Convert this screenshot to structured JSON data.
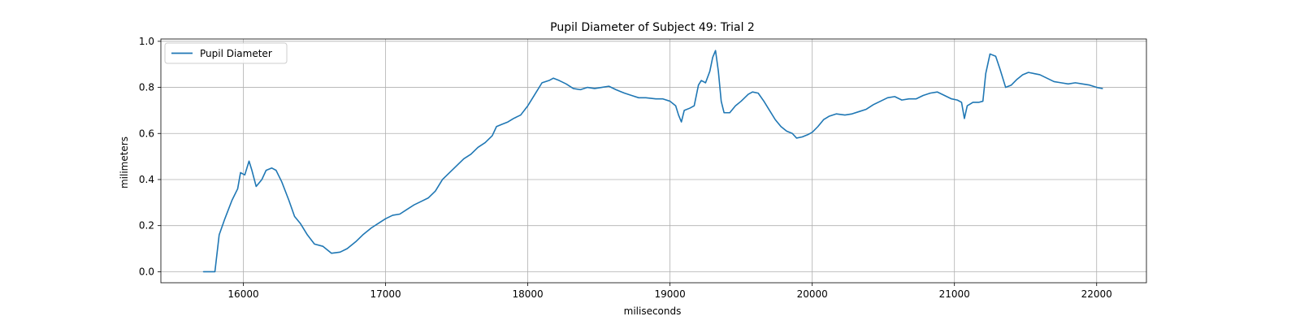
{
  "chart_data": {
    "type": "line",
    "title": "Pupil Diameter of Subject 49: Trial 2",
    "xlabel": "miliseconds",
    "ylabel": "milimeters",
    "xlim": [
      15420,
      22350
    ],
    "ylim": [
      -0.048,
      1.01
    ],
    "xticks": [
      16000,
      17000,
      18000,
      19000,
      20000,
      21000,
      22000
    ],
    "yticks": [
      0.0,
      0.2,
      0.4,
      0.6,
      0.8,
      1.0
    ],
    "xtick_labels": [
      "16000",
      "17000",
      "18000",
      "19000",
      "20000",
      "21000",
      "22000"
    ],
    "ytick_labels": [
      "0.0",
      "0.2",
      "0.4",
      "0.6",
      "0.8",
      "1.0"
    ],
    "grid": true,
    "legend_position": "upper-left",
    "series": [
      {
        "name": "Pupil Diameter",
        "color": "#1f77b4",
        "points": [
          [
            15720,
            0.0
          ],
          [
            15800,
            0.0
          ],
          [
            15830,
            0.16
          ],
          [
            15870,
            0.23
          ],
          [
            15920,
            0.31
          ],
          [
            15960,
            0.36
          ],
          [
            15980,
            0.43
          ],
          [
            16010,
            0.42
          ],
          [
            16040,
            0.48
          ],
          [
            16060,
            0.44
          ],
          [
            16090,
            0.37
          ],
          [
            16130,
            0.4
          ],
          [
            16160,
            0.44
          ],
          [
            16200,
            0.45
          ],
          [
            16230,
            0.44
          ],
          [
            16270,
            0.39
          ],
          [
            16320,
            0.31
          ],
          [
            16360,
            0.24
          ],
          [
            16400,
            0.21
          ],
          [
            16450,
            0.16
          ],
          [
            16500,
            0.12
          ],
          [
            16560,
            0.11
          ],
          [
            16620,
            0.08
          ],
          [
            16680,
            0.085
          ],
          [
            16730,
            0.1
          ],
          [
            16790,
            0.13
          ],
          [
            16840,
            0.16
          ],
          [
            16900,
            0.19
          ],
          [
            16950,
            0.21
          ],
          [
            17000,
            0.23
          ],
          [
            17050,
            0.245
          ],
          [
            17100,
            0.25
          ],
          [
            17150,
            0.27
          ],
          [
            17200,
            0.29
          ],
          [
            17250,
            0.305
          ],
          [
            17300,
            0.32
          ],
          [
            17350,
            0.35
          ],
          [
            17400,
            0.4
          ],
          [
            17450,
            0.43
          ],
          [
            17500,
            0.46
          ],
          [
            17550,
            0.49
          ],
          [
            17600,
            0.51
          ],
          [
            17650,
            0.54
          ],
          [
            17700,
            0.56
          ],
          [
            17750,
            0.59
          ],
          [
            17780,
            0.63
          ],
          [
            17820,
            0.64
          ],
          [
            17860,
            0.65
          ],
          [
            17900,
            0.665
          ],
          [
            17950,
            0.68
          ],
          [
            18000,
            0.72
          ],
          [
            18050,
            0.77
          ],
          [
            18100,
            0.82
          ],
          [
            18150,
            0.83
          ],
          [
            18180,
            0.84
          ],
          [
            18220,
            0.83
          ],
          [
            18270,
            0.815
          ],
          [
            18320,
            0.795
          ],
          [
            18370,
            0.79
          ],
          [
            18420,
            0.8
          ],
          [
            18470,
            0.795
          ],
          [
            18520,
            0.8
          ],
          [
            18570,
            0.805
          ],
          [
            18620,
            0.79
          ],
          [
            18680,
            0.775
          ],
          [
            18730,
            0.765
          ],
          [
            18780,
            0.755
          ],
          [
            18830,
            0.755
          ],
          [
            18900,
            0.75
          ],
          [
            18950,
            0.75
          ],
          [
            19000,
            0.74
          ],
          [
            19040,
            0.72
          ],
          [
            19060,
            0.68
          ],
          [
            19080,
            0.65
          ],
          [
            19100,
            0.7
          ],
          [
            19140,
            0.71
          ],
          [
            19170,
            0.72
          ],
          [
            19200,
            0.81
          ],
          [
            19220,
            0.83
          ],
          [
            19250,
            0.82
          ],
          [
            19280,
            0.87
          ],
          [
            19300,
            0.93
          ],
          [
            19320,
            0.96
          ],
          [
            19340,
            0.87
          ],
          [
            19360,
            0.74
          ],
          [
            19380,
            0.69
          ],
          [
            19420,
            0.69
          ],
          [
            19460,
            0.72
          ],
          [
            19500,
            0.74
          ],
          [
            19550,
            0.77
          ],
          [
            19580,
            0.78
          ],
          [
            19620,
            0.775
          ],
          [
            19660,
            0.74
          ],
          [
            19700,
            0.7
          ],
          [
            19740,
            0.66
          ],
          [
            19780,
            0.63
          ],
          [
            19820,
            0.61
          ],
          [
            19860,
            0.6
          ],
          [
            19890,
            0.58
          ],
          [
            19930,
            0.585
          ],
          [
            19970,
            0.595
          ],
          [
            20000,
            0.605
          ],
          [
            20040,
            0.63
          ],
          [
            20080,
            0.66
          ],
          [
            20120,
            0.675
          ],
          [
            20170,
            0.685
          ],
          [
            20230,
            0.68
          ],
          [
            20280,
            0.685
          ],
          [
            20330,
            0.695
          ],
          [
            20380,
            0.705
          ],
          [
            20430,
            0.725
          ],
          [
            20480,
            0.74
          ],
          [
            20530,
            0.755
          ],
          [
            20580,
            0.76
          ],
          [
            20630,
            0.745
          ],
          [
            20680,
            0.75
          ],
          [
            20730,
            0.75
          ],
          [
            20780,
            0.765
          ],
          [
            20830,
            0.775
          ],
          [
            20880,
            0.78
          ],
          [
            20930,
            0.765
          ],
          [
            20980,
            0.75
          ],
          [
            21020,
            0.745
          ],
          [
            21050,
            0.735
          ],
          [
            21070,
            0.665
          ],
          [
            21090,
            0.72
          ],
          [
            21130,
            0.735
          ],
          [
            21170,
            0.735
          ],
          [
            21200,
            0.74
          ],
          [
            21220,
            0.86
          ],
          [
            21250,
            0.945
          ],
          [
            21290,
            0.935
          ],
          [
            21320,
            0.88
          ],
          [
            21360,
            0.8
          ],
          [
            21400,
            0.81
          ],
          [
            21440,
            0.835
          ],
          [
            21480,
            0.855
          ],
          [
            21520,
            0.865
          ],
          [
            21560,
            0.86
          ],
          [
            21600,
            0.855
          ],
          [
            21650,
            0.84
          ],
          [
            21700,
            0.825
          ],
          [
            21750,
            0.82
          ],
          [
            21800,
            0.815
          ],
          [
            21850,
            0.82
          ],
          [
            21900,
            0.815
          ],
          [
            21950,
            0.81
          ],
          [
            22000,
            0.8
          ],
          [
            22040,
            0.795
          ]
        ]
      }
    ]
  }
}
